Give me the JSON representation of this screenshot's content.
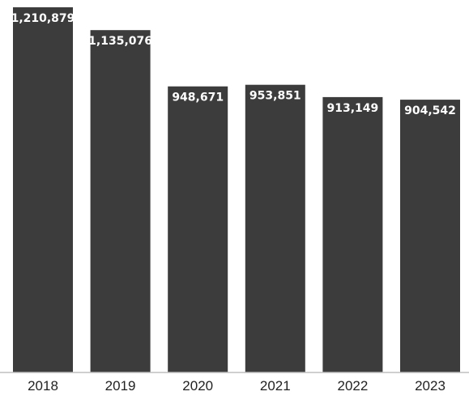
{
  "chart_data": {
    "type": "bar",
    "title": "",
    "xlabel": "",
    "ylabel": "",
    "categories": [
      "2018",
      "2019",
      "2020",
      "2021",
      "2022",
      "2023"
    ],
    "values": [
      1210879,
      1135076,
      948671,
      953851,
      913149,
      904542
    ],
    "value_labels": [
      "1,210,879",
      "1,135,076",
      "948,671",
      "953,851",
      "913,149",
      "904,542"
    ],
    "ylim": [
      0,
      1210879
    ],
    "grid": false,
    "legend": "none",
    "bar_color": "#3d3c3d",
    "axis_color": "#bfbfbf",
    "label_color": "#ffffff"
  }
}
